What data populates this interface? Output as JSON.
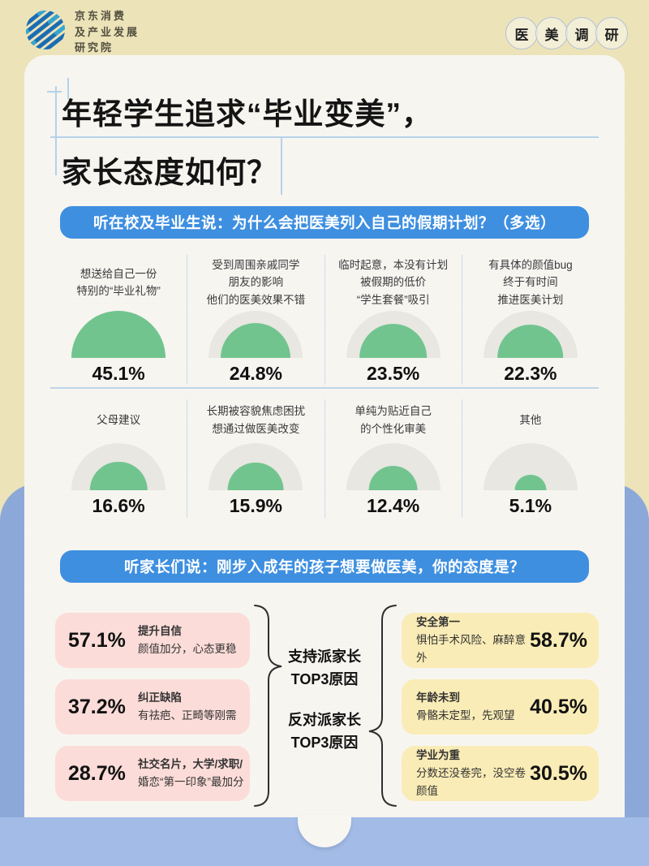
{
  "header": {
    "logo_lines": [
      "京东消费",
      "及产业发展",
      "研究院"
    ],
    "badge_chars": [
      "医",
      "美",
      "调",
      "研"
    ]
  },
  "title": {
    "line1": "年轻学生追求“毕业变美”，",
    "line2": "家长态度如何？"
  },
  "survey_students": {
    "banner": "听在校及毕业生说：为什么会把医美列入自己的假期计划？（多选）",
    "max_pct": 45.1,
    "items": [
      {
        "label_lines": [
          "想送给自己一份",
          "特别的“毕业礼物”"
        ],
        "value": "45.1%",
        "pct": 45.1
      },
      {
        "label_lines": [
          "受到周围亲戚同学",
          "朋友的影响",
          "他们的医美效果不错"
        ],
        "value": "24.8%",
        "pct": 24.8
      },
      {
        "label_lines": [
          "临时起意，本没有计划",
          "被假期的低价",
          "“学生套餐”吸引"
        ],
        "value": "23.5%",
        "pct": 23.5
      },
      {
        "label_lines": [
          "有具体的颜值bug",
          "终于有时间",
          "推进医美计划"
        ],
        "value": "22.3%",
        "pct": 22.3
      },
      {
        "label_lines": [
          "父母建议"
        ],
        "value": "16.6%",
        "pct": 16.6
      },
      {
        "label_lines": [
          "长期被容貌焦虑困扰",
          "想通过做医美改变"
        ],
        "value": "15.9%",
        "pct": 15.9
      },
      {
        "label_lines": [
          "单纯为贴近自己",
          "的个性化审美"
        ],
        "value": "12.4%",
        "pct": 12.4
      },
      {
        "label_lines": [
          "其他"
        ],
        "value": "5.1%",
        "pct": 5.1
      }
    ]
  },
  "survey_parents": {
    "banner": "听家长们说：刚步入成年的孩子想要做医美，你的态度是？",
    "support_label_line1": "支持派家长",
    "support_label_line2": "TOP3原因",
    "oppose_label_line1": "反对派家长",
    "oppose_label_line2": "TOP3原因",
    "support_items": [
      {
        "value": "57.1%",
        "title": "提升自信",
        "desc": "颜值加分，心态更稳"
      },
      {
        "value": "37.2%",
        "title": "纠正缺陷",
        "desc": "有祛疤、正畸等刚需"
      },
      {
        "value": "28.7%",
        "title": "社交名片，大学/求职/",
        "desc": "婚恋“第一印象”最加分"
      }
    ],
    "oppose_items": [
      {
        "value": "58.7%",
        "title": "安全第一",
        "desc": "惧怕手术风险、麻醉意外"
      },
      {
        "value": "40.5%",
        "title": "年龄未到",
        "desc": "骨骼未定型，先观望"
      },
      {
        "value": "30.5%",
        "title": "学业为重",
        "desc": "分数还没卷完，没空卷颜值"
      }
    ]
  },
  "colors": {
    "background_cream": "#ece3b9",
    "card": "#f8f6f1",
    "banner_blue": "#3e8fe0",
    "chart_green": "#72c48f",
    "chart_track_gray": "#e8e7e1",
    "support_pink": "#fbdcd8",
    "oppose_yellow": "#faecb6",
    "folder_blue": "#8ba8d8",
    "pocket_blue": "#a3bce7"
  },
  "chart_data": [
    {
      "type": "bar",
      "style": "semicircle-pictogram",
      "title": "听在校及毕业生说：为什么会把医美列入自己的假期计划？（多选）",
      "categories": [
        "想送给自己一份特别的“毕业礼物”",
        "受到周围亲戚同学朋友的影响 他们的医美效果不错",
        "临时起意，本没有计划 被假期的低价“学生套餐”吸引",
        "有具体的颜值bug 终于有时间推进医美计划",
        "父母建议",
        "长期被容貌焦虑困扰 想通过做医美改变",
        "单纯为贴近自己的个性化审美",
        "其他"
      ],
      "values": [
        45.1,
        24.8,
        23.5,
        22.3,
        16.6,
        15.9,
        12.4,
        5.1
      ],
      "unit": "%",
      "ylim": [
        0,
        45.1
      ]
    },
    {
      "type": "bar",
      "title": "听家长们说：刚步入成年的孩子想要做医美，你的态度是？",
      "series": [
        {
          "name": "支持派家长TOP3原因",
          "categories": [
            "提升自信（颜值加分，心态更稳）",
            "纠正缺陷（有祛疤、正畸等刚需）",
            "社交名片（大学/求职/婚恋“第一印象”最加分）"
          ],
          "values": [
            57.1,
            37.2,
            28.7
          ]
        },
        {
          "name": "反对派家长TOP3原因",
          "categories": [
            "安全第一（惧怕手术风险、麻醉意外）",
            "年龄未到（骨骼未定型，先观望）",
            "学业为重（分数还没卷完，没空卷颜值）"
          ],
          "values": [
            58.7,
            40.5,
            30.5
          ]
        }
      ],
      "unit": "%"
    }
  ]
}
